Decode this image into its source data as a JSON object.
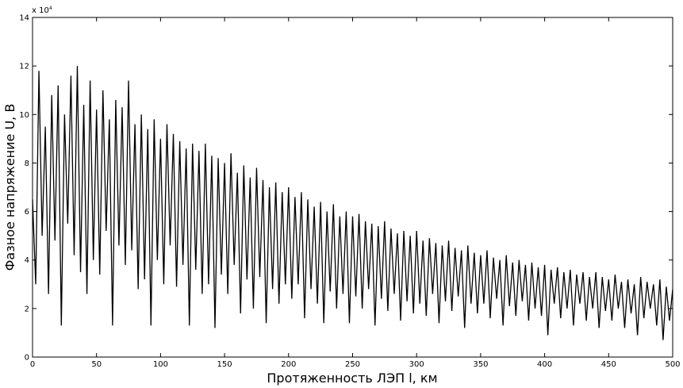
{
  "chart_data": {
    "type": "line",
    "xlabel": "Протяженность ЛЭП l, км",
    "ylabel": "Фазное напряжение U, В",
    "y_multiplier": "x 10",
    "y_multiplier_exp": "4",
    "xlim": [
      0,
      500
    ],
    "ylim": [
      0,
      14
    ],
    "xticks": [
      0,
      50,
      100,
      150,
      200,
      250,
      300,
      350,
      400,
      450,
      500
    ],
    "yticks": [
      0,
      2,
      4,
      6,
      8,
      10,
      12,
      14
    ],
    "x": [
      0,
      2.5,
      5,
      7.5,
      10,
      12.5,
      15,
      17.5,
      20,
      22.5,
      25,
      27.5,
      30,
      32.5,
      35,
      37.5,
      40,
      42.5,
      45,
      47.5,
      50,
      52.5,
      55,
      57.5,
      60,
      62.5,
      65,
      67.5,
      70,
      72.5,
      75,
      77.5,
      80,
      82.5,
      85,
      87.5,
      90,
      92.5,
      95,
      97.5,
      100,
      102.5,
      105,
      107.5,
      110,
      112.5,
      115,
      117.5,
      120,
      122.5,
      125,
      127.5,
      130,
      132.5,
      135,
      137.5,
      140,
      142.5,
      145,
      147.5,
      150,
      152.5,
      155,
      157.5,
      160,
      162.5,
      165,
      167.5,
      170,
      172.5,
      175,
      177.5,
      180,
      182.5,
      185,
      187.5,
      190,
      192.5,
      195,
      197.5,
      200,
      202.5,
      205,
      207.5,
      210,
      212.5,
      215,
      217.5,
      220,
      222.5,
      225,
      227.5,
      230,
      232.5,
      235,
      237.5,
      240,
      242.5,
      245,
      247.5,
      250,
      252.5,
      255,
      257.5,
      260,
      262.5,
      265,
      267.5,
      270,
      272.5,
      275,
      277.5,
      280,
      282.5,
      285,
      287.5,
      290,
      292.5,
      295,
      297.5,
      300,
      302.5,
      305,
      307.5,
      310,
      312.5,
      315,
      317.5,
      320,
      322.5,
      325,
      327.5,
      330,
      332.5,
      335,
      337.5,
      340,
      342.5,
      345,
      347.5,
      350,
      352.5,
      355,
      357.5,
      360,
      362.5,
      365,
      367.5,
      370,
      372.5,
      375,
      377.5,
      380,
      382.5,
      385,
      387.5,
      390,
      392.5,
      395,
      397.5,
      400,
      402.5,
      405,
      407.5,
      410,
      412.5,
      415,
      417.5,
      420,
      422.5,
      425,
      427.5,
      430,
      432.5,
      435,
      437.5,
      440,
      442.5,
      445,
      447.5,
      450,
      452.5,
      455,
      457.5,
      460,
      462.5,
      465,
      467.5,
      470,
      472.5,
      475,
      477.5,
      480,
      482.5,
      485,
      487.5,
      490,
      492.5,
      495,
      497.5,
      500
    ],
    "series": [
      {
        "color": "#000000",
        "values": [
          6.5,
          3.0,
          11.8,
          5.0,
          9.5,
          2.6,
          10.8,
          4.8,
          11.2,
          1.3,
          10.0,
          5.5,
          11.6,
          4.2,
          12.0,
          3.5,
          10.4,
          2.6,
          11.4,
          4.0,
          10.2,
          3.4,
          11.0,
          5.2,
          9.8,
          1.3,
          10.6,
          4.6,
          10.3,
          3.8,
          11.4,
          4.4,
          9.6,
          2.8,
          10.0,
          3.2,
          9.4,
          1.3,
          9.8,
          4.0,
          9.0,
          3.0,
          9.6,
          4.6,
          9.2,
          2.9,
          8.9,
          3.8,
          8.6,
          1.3,
          8.8,
          3.6,
          8.5,
          2.6,
          8.8,
          3.0,
          8.3,
          1.2,
          8.2,
          3.4,
          8.0,
          2.6,
          8.4,
          3.8,
          7.6,
          1.8,
          7.9,
          3.2,
          7.4,
          2.0,
          7.8,
          3.3,
          7.3,
          1.4,
          7.0,
          2.8,
          7.2,
          2.2,
          6.8,
          3.0,
          7.0,
          2.4,
          6.6,
          3.0,
          6.8,
          1.6,
          6.5,
          2.8,
          6.2,
          2.2,
          6.4,
          1.4,
          6.0,
          2.7,
          6.3,
          2.0,
          5.8,
          2.6,
          6.0,
          1.4,
          5.8,
          2.5,
          5.9,
          2.0,
          5.6,
          2.8,
          5.5,
          1.3,
          5.4,
          2.4,
          5.6,
          1.9,
          5.3,
          2.6,
          5.1,
          1.5,
          5.2,
          2.3,
          5.0,
          1.8,
          5.2,
          2.2,
          4.8,
          1.7,
          4.9,
          2.6,
          4.7,
          1.4,
          4.6,
          2.3,
          4.8,
          1.9,
          4.5,
          2.5,
          4.4,
          1.2,
          4.6,
          2.2,
          4.3,
          1.8,
          4.2,
          2.2,
          4.4,
          1.6,
          4.1,
          2.4,
          4.0,
          1.3,
          4.2,
          2.1,
          3.9,
          1.7,
          4.0,
          2.3,
          3.8,
          1.5,
          3.9,
          2.0,
          3.7,
          1.7,
          3.8,
          0.9,
          3.6,
          2.2,
          3.7,
          1.6,
          3.5,
          2.0,
          3.6,
          1.3,
          3.4,
          2.2,
          3.5,
          1.5,
          3.3,
          2.0,
          3.5,
          1.2,
          3.3,
          1.9,
          3.2,
          1.5,
          3.4,
          2.0,
          3.1,
          1.2,
          3.2,
          1.8,
          3.0,
          0.9,
          3.3,
          1.6,
          3.1,
          2.0,
          3.0,
          1.3,
          3.2,
          0.7,
          2.9,
          1.5,
          2.8
        ]
      }
    ]
  }
}
